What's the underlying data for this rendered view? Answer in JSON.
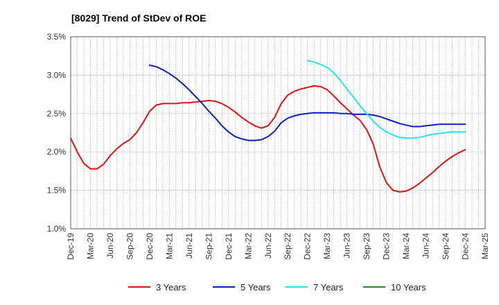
{
  "chart_data": {
    "type": "line",
    "title": "[8029]  Trend of StDev of ROE",
    "xlabel": "",
    "ylabel": "",
    "ylim": [
      1.0,
      3.5
    ],
    "y_ticks": [
      "1.0%",
      "1.5%",
      "2.0%",
      "2.5%",
      "3.0%",
      "3.5%"
    ],
    "x_ticks": [
      "Dec-19",
      "Mar-20",
      "Jun-20",
      "Sep-20",
      "Dec-20",
      "Mar-21",
      "Jun-21",
      "Sep-21",
      "Dec-21",
      "Mar-22",
      "Jun-22",
      "Sep-22",
      "Dec-22",
      "Mar-23",
      "Jun-23",
      "Sep-23",
      "Dec-23",
      "Mar-24",
      "Jun-24",
      "Sep-24",
      "Dec-24",
      "Mar-25"
    ],
    "grid": true,
    "legend_position": "bottom",
    "series": [
      {
        "name": "3 Years",
        "color": "#dd1111",
        "points": [
          [
            "Dec-19",
            2.18
          ],
          [
            "Jan-20",
            2.0
          ],
          [
            "Feb-20",
            1.85
          ],
          [
            "Mar-20",
            1.78
          ],
          [
            "Apr-20",
            1.78
          ],
          [
            "May-20",
            1.84
          ],
          [
            "Jun-20",
            1.95
          ],
          [
            "Jul-20",
            2.04
          ],
          [
            "Aug-20",
            2.11
          ],
          [
            "Sep-20",
            2.16
          ],
          [
            "Oct-20",
            2.25
          ],
          [
            "Nov-20",
            2.38
          ],
          [
            "Dec-20",
            2.53
          ],
          [
            "Jan-21",
            2.61
          ],
          [
            "Feb-21",
            2.63
          ],
          [
            "Mar-21",
            2.63
          ],
          [
            "Apr-21",
            2.63
          ],
          [
            "May-21",
            2.64
          ],
          [
            "Jun-21",
            2.64
          ],
          [
            "Jul-21",
            2.65
          ],
          [
            "Aug-21",
            2.66
          ],
          [
            "Sep-21",
            2.67
          ],
          [
            "Oct-21",
            2.66
          ],
          [
            "Nov-21",
            2.63
          ],
          [
            "Dec-21",
            2.58
          ],
          [
            "Jan-22",
            2.52
          ],
          [
            "Feb-22",
            2.45
          ],
          [
            "Mar-22",
            2.39
          ],
          [
            "Apr-22",
            2.34
          ],
          [
            "May-22",
            2.31
          ],
          [
            "Jun-22",
            2.34
          ],
          [
            "Jul-22",
            2.45
          ],
          [
            "Aug-22",
            2.63
          ],
          [
            "Sep-22",
            2.74
          ],
          [
            "Oct-22",
            2.79
          ],
          [
            "Nov-22",
            2.82
          ],
          [
            "Dec-22",
            2.84
          ],
          [
            "Jan-23",
            2.86
          ],
          [
            "Feb-23",
            2.85
          ],
          [
            "Mar-23",
            2.81
          ],
          [
            "Apr-23",
            2.73
          ],
          [
            "May-23",
            2.64
          ],
          [
            "Jun-23",
            2.56
          ],
          [
            "Jul-23",
            2.48
          ],
          [
            "Aug-23",
            2.41
          ],
          [
            "Sep-23",
            2.29
          ],
          [
            "Oct-23",
            2.1
          ],
          [
            "Nov-23",
            1.8
          ],
          [
            "Dec-23",
            1.6
          ],
          [
            "Jan-24",
            1.5
          ],
          [
            "Feb-24",
            1.48
          ],
          [
            "Mar-24",
            1.49
          ],
          [
            "Apr-24",
            1.53
          ],
          [
            "May-24",
            1.59
          ],
          [
            "Jun-24",
            1.66
          ],
          [
            "Jul-24",
            1.73
          ],
          [
            "Aug-24",
            1.81
          ],
          [
            "Sep-24",
            1.88
          ],
          [
            "Oct-24",
            1.94
          ],
          [
            "Nov-24",
            1.99
          ],
          [
            "Dec-24",
            2.03
          ]
        ]
      },
      {
        "name": "5 Years",
        "color": "#0a1fbf",
        "points": [
          [
            "Dec-20",
            3.13
          ],
          [
            "Jan-21",
            3.11
          ],
          [
            "Feb-21",
            3.07
          ],
          [
            "Mar-21",
            3.02
          ],
          [
            "Apr-21",
            2.96
          ],
          [
            "May-21",
            2.89
          ],
          [
            "Jun-21",
            2.81
          ],
          [
            "Jul-21",
            2.72
          ],
          [
            "Aug-21",
            2.63
          ],
          [
            "Sep-21",
            2.53
          ],
          [
            "Oct-21",
            2.44
          ],
          [
            "Nov-21",
            2.34
          ],
          [
            "Dec-21",
            2.26
          ],
          [
            "Jan-22",
            2.2
          ],
          [
            "Feb-22",
            2.17
          ],
          [
            "Mar-22",
            2.15
          ],
          [
            "Apr-22",
            2.15
          ],
          [
            "May-22",
            2.16
          ],
          [
            "Jun-22",
            2.2
          ],
          [
            "Jul-22",
            2.27
          ],
          [
            "Aug-22",
            2.38
          ],
          [
            "Sep-22",
            2.44
          ],
          [
            "Oct-22",
            2.47
          ],
          [
            "Nov-22",
            2.49
          ],
          [
            "Dec-22",
            2.5
          ],
          [
            "Jan-23",
            2.51
          ],
          [
            "Feb-23",
            2.51
          ],
          [
            "Mar-23",
            2.51
          ],
          [
            "Apr-23",
            2.51
          ],
          [
            "May-23",
            2.5
          ],
          [
            "Jun-23",
            2.5
          ],
          [
            "Jul-23",
            2.49
          ],
          [
            "Aug-23",
            2.49
          ],
          [
            "Sep-23",
            2.49
          ],
          [
            "Oct-23",
            2.48
          ],
          [
            "Nov-23",
            2.46
          ],
          [
            "Dec-23",
            2.43
          ],
          [
            "Jan-24",
            2.4
          ],
          [
            "Feb-24",
            2.37
          ],
          [
            "Mar-24",
            2.35
          ],
          [
            "Apr-24",
            2.33
          ],
          [
            "May-24",
            2.33
          ],
          [
            "Jun-24",
            2.34
          ],
          [
            "Jul-24",
            2.35
          ],
          [
            "Aug-24",
            2.36
          ],
          [
            "Sep-24",
            2.36
          ],
          [
            "Oct-24",
            2.36
          ],
          [
            "Nov-24",
            2.36
          ],
          [
            "Dec-24",
            2.36
          ]
        ]
      },
      {
        "name": "7 Years",
        "color": "#22e5ee",
        "points": [
          [
            "Dec-22",
            3.19
          ],
          [
            "Jan-23",
            3.17
          ],
          [
            "Feb-23",
            3.14
          ],
          [
            "Mar-23",
            3.1
          ],
          [
            "Apr-23",
            3.03
          ],
          [
            "May-23",
            2.93
          ],
          [
            "Jun-23",
            2.82
          ],
          [
            "Jul-23",
            2.71
          ],
          [
            "Aug-23",
            2.6
          ],
          [
            "Sep-23",
            2.5
          ],
          [
            "Oct-23",
            2.4
          ],
          [
            "Nov-23",
            2.32
          ],
          [
            "Dec-23",
            2.26
          ],
          [
            "Jan-24",
            2.22
          ],
          [
            "Feb-24",
            2.19
          ],
          [
            "Mar-24",
            2.18
          ],
          [
            "Apr-24",
            2.18
          ],
          [
            "May-24",
            2.19
          ],
          [
            "Jun-24",
            2.21
          ],
          [
            "Jul-24",
            2.23
          ],
          [
            "Aug-24",
            2.24
          ],
          [
            "Sep-24",
            2.25
          ],
          [
            "Oct-24",
            2.26
          ],
          [
            "Nov-24",
            2.26
          ],
          [
            "Dec-24",
            2.26
          ]
        ]
      },
      {
        "name": "10 Years",
        "color": "#2a8a2a",
        "points": []
      }
    ]
  }
}
